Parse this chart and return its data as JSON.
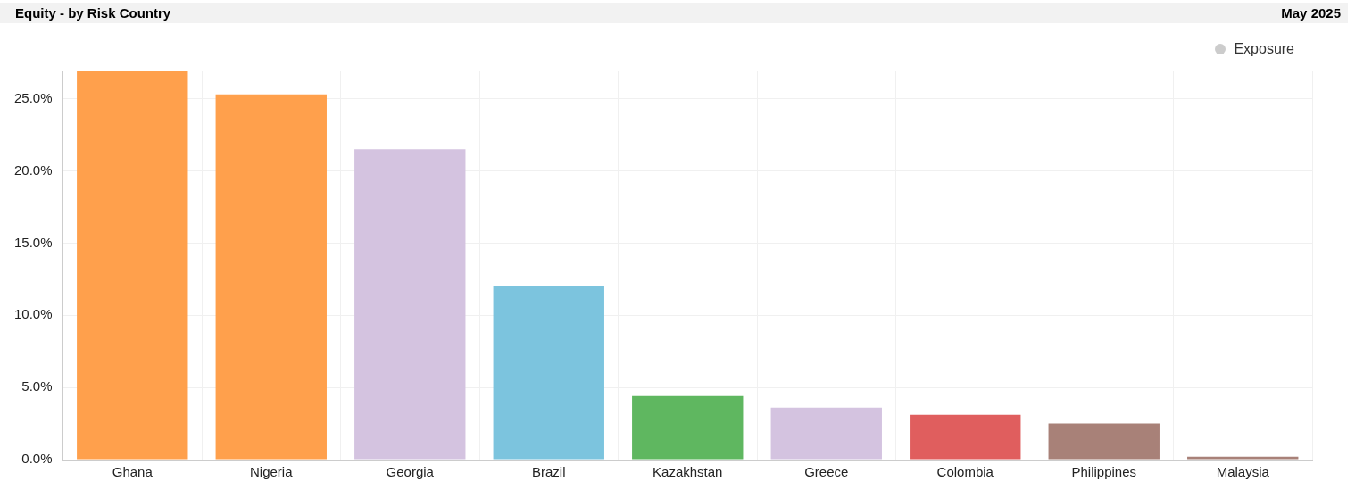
{
  "chart_data": {
    "type": "bar",
    "title": "Equity - by Risk Country",
    "subtitle": "May 2025",
    "categories": [
      "Ghana",
      "Nigeria",
      "Georgia",
      "Brazil",
      "Kazakhstan",
      "Greece",
      "Colombia",
      "Philippines",
      "Malaysia"
    ],
    "series": [
      {
        "name": "Exposure",
        "color": "#cccccc",
        "colors": [
          "#ffa04c",
          "#ffa04c",
          "#d4c3e0",
          "#7cc4de",
          "#5fb760",
          "#d4c3e0",
          "#e05e5e",
          "#a88178",
          "#a88178"
        ],
        "values": [
          26.9,
          25.3,
          21.5,
          12.0,
          4.4,
          3.6,
          3.1,
          2.5,
          0.2
        ]
      }
    ],
    "ylim": [
      0,
      26.9
    ],
    "yticks": [
      {
        "value": 0,
        "label": "0.0%"
      },
      {
        "value": 5,
        "label": "5.0%"
      },
      {
        "value": 10,
        "label": "10.0%"
      },
      {
        "value": 15,
        "label": "15.0%"
      },
      {
        "value": 20,
        "label": "20.0%"
      },
      {
        "value": 25,
        "label": "25.0%"
      }
    ],
    "grid": true,
    "legend": "top right"
  }
}
